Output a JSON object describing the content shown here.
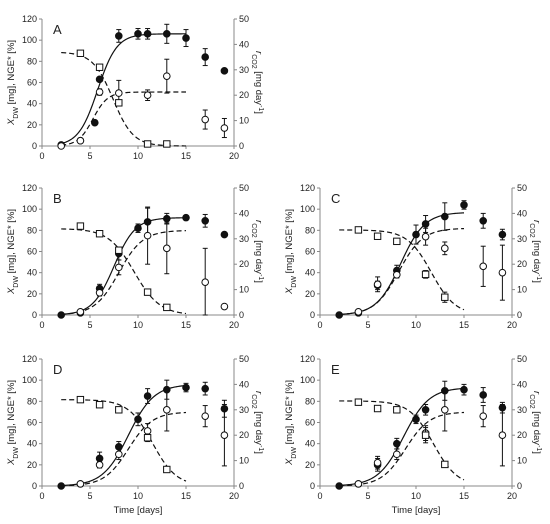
{
  "figure": {
    "shared_xlabel": "Time [days]",
    "left_ylabel": {
      "parts": [
        {
          "t": "X",
          "s": "n"
        },
        {
          "t": "DW",
          "s": "sub"
        },
        {
          "t": " [mg], NGE* [%]",
          "s": "n"
        }
      ]
    },
    "right_ylabel": {
      "parts": [
        {
          "t": "r",
          "s": "n"
        },
        {
          "t": "CO2",
          "s": "sub"
        },
        {
          "t": " [mg day",
          "s": "n"
        },
        {
          "t": "-1",
          "s": "sup"
        },
        {
          "t": "]",
          "s": "n"
        }
      ]
    }
  },
  "chart_data": [
    {
      "type": "scatter",
      "panel_label": "A",
      "xlim": [
        0,
        20
      ],
      "ylim": [
        0,
        120
      ],
      "y2lim": [
        0,
        50
      ],
      "xticks": [
        0,
        5,
        10,
        15,
        20
      ],
      "yticks": [
        0,
        20,
        40,
        60,
        80,
        100,
        120
      ],
      "y2ticks": [
        0,
        10,
        20,
        30,
        40,
        50
      ],
      "xlabel": "",
      "show_xlabel": false,
      "series": [
        {
          "marker": "filled-circle",
          "axis": "left",
          "x": [
            2,
            4,
            5.5,
            6,
            8,
            10,
            11,
            13,
            15,
            17,
            19
          ],
          "y": [
            1,
            5,
            22,
            63,
            104,
            106,
            106,
            106,
            102,
            84,
            71
          ],
          "err": [
            0,
            0,
            0,
            0,
            6,
            5,
            5,
            9,
            8,
            8,
            0
          ]
        },
        {
          "marker": "open-circle",
          "axis": "left",
          "x": [
            2,
            4,
            6,
            8,
            11,
            13,
            17,
            19
          ],
          "y": [
            0,
            5,
            51,
            50,
            48,
            66,
            25,
            17
          ],
          "err": [
            0,
            0,
            3,
            12,
            5,
            16,
            9,
            9
          ]
        },
        {
          "marker": "open-square",
          "axis": "right",
          "x": [
            4,
            6,
            8,
            11,
            13
          ],
          "y": [
            36.5,
            31,
            17,
            0.8,
            0.8
          ],
          "err": [
            0,
            0,
            1,
            0,
            0
          ]
        }
      ],
      "curves": [
        {
          "style": "solid",
          "axis": "left",
          "asymptote": 106,
          "midpoint": 5.8,
          "rate": 1.0
        },
        {
          "style": "dashed",
          "axis": "left",
          "asymptote": 51,
          "midpoint": 5.3,
          "rate": 1.3
        },
        {
          "style": "dashed-decay",
          "axis": "right",
          "start": 37,
          "midpoint": 7.4,
          "rate": 0.95
        }
      ]
    },
    {
      "type": "scatter",
      "panel_label": "B",
      "xlim": [
        0,
        20
      ],
      "ylim": [
        0,
        120
      ],
      "y2lim": [
        0,
        50
      ],
      "xticks": [
        0,
        5,
        10,
        15,
        20
      ],
      "yticks": [
        0,
        20,
        40,
        60,
        80,
        100,
        120
      ],
      "y2ticks": [
        0,
        10,
        20,
        30,
        40,
        50
      ],
      "xlabel": "",
      "show_xlabel": false,
      "series": [
        {
          "marker": "filled-circle",
          "axis": "left",
          "x": [
            2,
            4,
            6,
            8,
            10,
            11,
            13,
            15,
            17,
            19
          ],
          "y": [
            0,
            2,
            25,
            58,
            82,
            88,
            91,
            92,
            89,
            76
          ],
          "err": [
            0,
            0,
            4,
            6,
            4,
            13,
            5,
            2,
            6,
            0
          ]
        },
        {
          "marker": "open-circle",
          "axis": "left",
          "x": [
            4,
            6,
            8,
            11,
            13,
            17,
            19
          ],
          "y": [
            3,
            21,
            45,
            75,
            63,
            31,
            8
          ],
          "err": [
            0,
            3,
            7,
            27,
            24,
            32,
            0
          ]
        },
        {
          "marker": "open-square",
          "axis": "right",
          "x": [
            4,
            6,
            8,
            11,
            13
          ],
          "y": [
            35,
            32,
            25.5,
            9,
            3
          ],
          "err": [
            0,
            0,
            0,
            0,
            0
          ]
        }
      ],
      "curves": [
        {
          "style": "solid",
          "axis": "left",
          "asymptote": 92,
          "midpoint": 7.5,
          "rate": 0.9
        },
        {
          "style": "dashed",
          "axis": "left",
          "asymptote": 80,
          "midpoint": 8.0,
          "rate": 0.8
        },
        {
          "style": "dashed-decay",
          "axis": "right",
          "start": 34,
          "midpoint": 9.6,
          "rate": 0.75
        }
      ]
    },
    {
      "type": "scatter",
      "panel_label": "C",
      "xlim": [
        0,
        20
      ],
      "ylim": [
        0,
        120
      ],
      "y2lim": [
        0,
        50
      ],
      "xticks": [
        0,
        5,
        10,
        15,
        20
      ],
      "yticks": [
        0,
        20,
        40,
        60,
        80,
        100,
        120
      ],
      "y2ticks": [
        0,
        10,
        20,
        30,
        40,
        50
      ],
      "xlabel": "",
      "show_xlabel": false,
      "series": [
        {
          "marker": "filled-circle",
          "axis": "left",
          "x": [
            2,
            4,
            6,
            8,
            10,
            11,
            13,
            15,
            17,
            19
          ],
          "y": [
            0,
            2,
            28,
            42,
            76,
            86,
            93,
            104,
            89,
            76
          ],
          "err": [
            0,
            0,
            4,
            5,
            9,
            8,
            13,
            4,
            7,
            5
          ]
        },
        {
          "marker": "open-circle",
          "axis": "left",
          "x": [
            4,
            6,
            8,
            11,
            13,
            17,
            19
          ],
          "y": [
            3,
            29,
            38,
            74,
            63,
            46,
            40
          ],
          "err": [
            0,
            7,
            3,
            8,
            6,
            19,
            26
          ]
        },
        {
          "marker": "open-square",
          "axis": "right",
          "x": [
            4,
            6,
            8,
            11,
            13
          ],
          "y": [
            33.5,
            31,
            29,
            16,
            7
          ],
          "err": [
            0,
            0,
            0,
            1.5,
            2
          ]
        }
      ],
      "curves": [
        {
          "style": "solid",
          "axis": "left",
          "asymptote": 97,
          "midpoint": 8.4,
          "rate": 0.8
        },
        {
          "style": "dashed",
          "axis": "left",
          "asymptote": 82,
          "midpoint": 8.2,
          "rate": 0.8
        },
        {
          "style": "dashed-decay",
          "axis": "right",
          "start": 33.5,
          "midpoint": 11.6,
          "rate": 0.8
        }
      ]
    },
    {
      "type": "scatter",
      "panel_label": "D",
      "xlim": [
        0,
        20
      ],
      "ylim": [
        0,
        120
      ],
      "y2lim": [
        0,
        50
      ],
      "xticks": [
        0,
        5,
        10,
        15,
        20
      ],
      "yticks": [
        0,
        20,
        40,
        60,
        80,
        100,
        120
      ],
      "y2ticks": [
        0,
        10,
        20,
        30,
        40,
        50
      ],
      "xlabel": "Time [days]",
      "show_xlabel": true,
      "series": [
        {
          "marker": "filled-circle",
          "axis": "left",
          "x": [
            2,
            4,
            6,
            8,
            10,
            11,
            13,
            15,
            17,
            19
          ],
          "y": [
            0,
            2,
            26,
            37,
            63,
            85,
            91,
            93,
            92,
            73
          ],
          "err": [
            0,
            0,
            6,
            5,
            6,
            7,
            9,
            4,
            6,
            8
          ]
        },
        {
          "marker": "open-circle",
          "axis": "left",
          "x": [
            4,
            6,
            8,
            11,
            13,
            17,
            19
          ],
          "y": [
            2,
            20,
            30,
            52,
            72,
            66,
            48
          ],
          "err": [
            0,
            3,
            5,
            7,
            20,
            10,
            29
          ]
        },
        {
          "marker": "open-square",
          "axis": "right",
          "x": [
            4,
            6,
            8,
            11,
            13
          ],
          "y": [
            34,
            32,
            30,
            19,
            6.5
          ],
          "err": [
            0,
            0,
            0,
            1.5,
            0
          ]
        }
      ],
      "curves": [
        {
          "style": "solid",
          "axis": "left",
          "asymptote": 96,
          "midpoint": 9.0,
          "rate": 0.75
        },
        {
          "style": "dashed",
          "axis": "left",
          "asymptote": 70,
          "midpoint": 9.0,
          "rate": 0.8
        },
        {
          "style": "dashed-decay",
          "axis": "right",
          "start": 34,
          "midpoint": 11.5,
          "rate": 0.8
        }
      ]
    },
    {
      "type": "scatter",
      "panel_label": "E",
      "xlim": [
        0,
        20
      ],
      "ylim": [
        0,
        120
      ],
      "y2lim": [
        0,
        50
      ],
      "xticks": [
        0,
        5,
        10,
        15,
        20
      ],
      "yticks": [
        0,
        20,
        40,
        60,
        80,
        100,
        120
      ],
      "y2ticks": [
        0,
        10,
        20,
        30,
        40,
        50
      ],
      "xlabel": "Time [days]",
      "show_xlabel": true,
      "series": [
        {
          "marker": "filled-circle",
          "axis": "left",
          "x": [
            2,
            4,
            6,
            8,
            10,
            11,
            13,
            15,
            17,
            19
          ],
          "y": [
            0,
            2,
            20,
            40,
            63,
            72,
            90,
            91,
            86,
            74
          ],
          "err": [
            0,
            0,
            6,
            5,
            4,
            5,
            9,
            5,
            7,
            5
          ]
        },
        {
          "marker": "open-circle",
          "axis": "left",
          "x": [
            4,
            6,
            8,
            11,
            13,
            17,
            19
          ],
          "y": [
            2,
            22,
            30,
            50,
            72,
            66,
            48
          ],
          "err": [
            0,
            6,
            5,
            7,
            20,
            10,
            29
          ]
        },
        {
          "marker": "open-square",
          "axis": "right",
          "x": [
            4,
            6,
            8,
            11,
            13
          ],
          "y": [
            33,
            30.5,
            30,
            20,
            8.5
          ],
          "err": [
            0,
            0,
            0,
            3,
            0
          ]
        }
      ],
      "curves": [
        {
          "style": "solid",
          "axis": "left",
          "asymptote": 93,
          "midpoint": 8.7,
          "rate": 0.75
        },
        {
          "style": "dashed",
          "axis": "left",
          "asymptote": 70,
          "midpoint": 8.9,
          "rate": 0.8
        },
        {
          "style": "dashed-decay",
          "axis": "right",
          "start": 33.5,
          "midpoint": 11.8,
          "rate": 0.8
        }
      ]
    }
  ]
}
